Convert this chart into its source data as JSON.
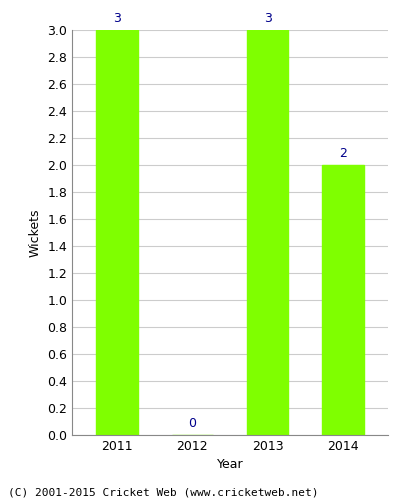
{
  "years": [
    "2011",
    "2012",
    "2013",
    "2014"
  ],
  "values": [
    3,
    0,
    3,
    2
  ],
  "bar_color": "#7FFF00",
  "bar_edgecolor": "#7FFF00",
  "label_color": "#00008B",
  "xlabel": "Year",
  "ylabel": "Wickets",
  "ylim": [
    0.0,
    3.0
  ],
  "yticks": [
    0.0,
    0.2,
    0.4,
    0.6,
    0.8,
    1.0,
    1.2,
    1.4,
    1.6,
    1.8,
    2.0,
    2.2,
    2.4,
    2.6,
    2.8,
    3.0
  ],
  "footer": "(C) 2001-2015 Cricket Web (www.cricketweb.net)",
  "background_color": "#ffffff",
  "axes_bg_color": "#ffffff",
  "grid_color": "#cccccc",
  "label_fontsize": 9,
  "axis_fontsize": 9,
  "footer_fontsize": 8,
  "bar_width": 0.55
}
